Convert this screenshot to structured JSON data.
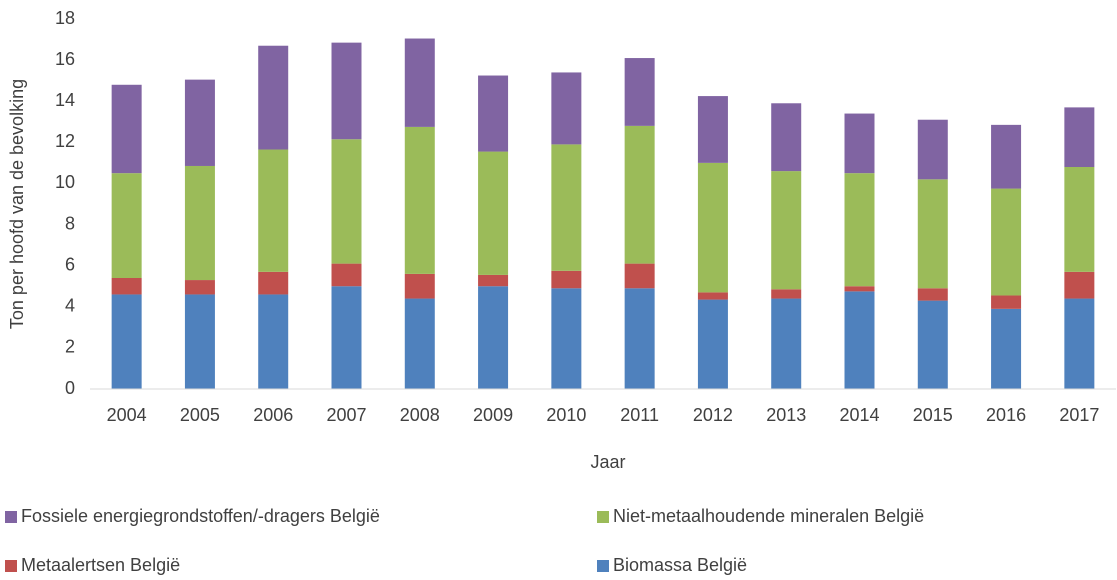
{
  "chart_data": {
    "type": "stacked_bar",
    "x_label": "Jaar",
    "y_label": "Ton per hoofd van de bevolking",
    "categories": [
      "2004",
      "2005",
      "2006",
      "2007",
      "2008",
      "2009",
      "2010",
      "2011",
      "2012",
      "2013",
      "2014",
      "2015",
      "2016",
      "2017"
    ],
    "series": [
      {
        "name": "Biomassa België",
        "color": "#4f81bd",
        "values": [
          4.6,
          4.6,
          4.6,
          5.0,
          4.4,
          5.0,
          4.9,
          4.9,
          4.35,
          4.4,
          4.75,
          4.3,
          3.9,
          4.4
        ]
      },
      {
        "name": "Metaalertsen België",
        "color": "#c0504d",
        "values": [
          0.8,
          0.7,
          1.1,
          1.1,
          1.2,
          0.55,
          0.85,
          1.2,
          0.35,
          0.45,
          0.25,
          0.6,
          0.65,
          1.3
        ]
      },
      {
        "name": "Niet-metaalhoudende mineralen België",
        "color": "#9bbb59",
        "values": [
          5.1,
          5.55,
          5.95,
          6.05,
          7.15,
          6.0,
          6.15,
          6.7,
          6.3,
          5.75,
          5.5,
          5.3,
          5.2,
          5.1
        ]
      },
      {
        "name": "Fossiele energiegrondstoffen/-dragers België",
        "color": "#8064a2",
        "values": [
          4.3,
          4.2,
          5.05,
          4.7,
          4.3,
          3.7,
          3.5,
          3.3,
          3.25,
          3.3,
          2.9,
          2.9,
          3.1,
          2.9
        ]
      }
    ],
    "ylim": [
      0,
      18
    ],
    "yticks": [
      0,
      2,
      4,
      6,
      8,
      10,
      12,
      14,
      16,
      18
    ],
    "grid": false
  }
}
